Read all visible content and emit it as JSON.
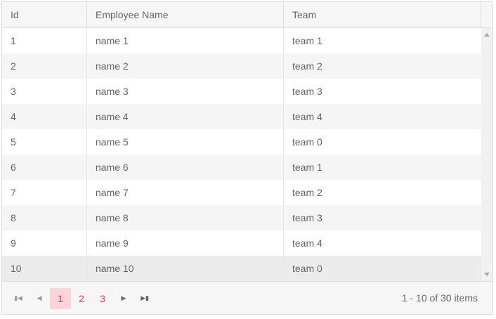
{
  "columns": [
    "Id",
    "Employee Name",
    "Team"
  ],
  "rows": [
    [
      "1",
      "name 1",
      "team 1"
    ],
    [
      "2",
      "name 2",
      "team 2"
    ],
    [
      "3",
      "name 3",
      "team 3"
    ],
    [
      "4",
      "name 4",
      "team 4"
    ],
    [
      "5",
      "name 5",
      "team 0"
    ],
    [
      "6",
      "name 6",
      "team 1"
    ],
    [
      "7",
      "name 7",
      "team 2"
    ],
    [
      "8",
      "name 8",
      "team 3"
    ],
    [
      "9",
      "name 9",
      "team 4"
    ],
    [
      "10",
      "name 10",
      "team 0"
    ]
  ],
  "pager": {
    "pages": [
      "1",
      "2",
      "3"
    ],
    "current_page": "1",
    "info": "1 - 10 of 30 items",
    "icons": {
      "first": "first-page-icon",
      "prev": "prev-page-icon",
      "next": "next-page-icon",
      "last": "last-page-icon"
    }
  },
  "colors": {
    "accent": "#f3325a",
    "selected_page_bg": "#fdd4da"
  }
}
